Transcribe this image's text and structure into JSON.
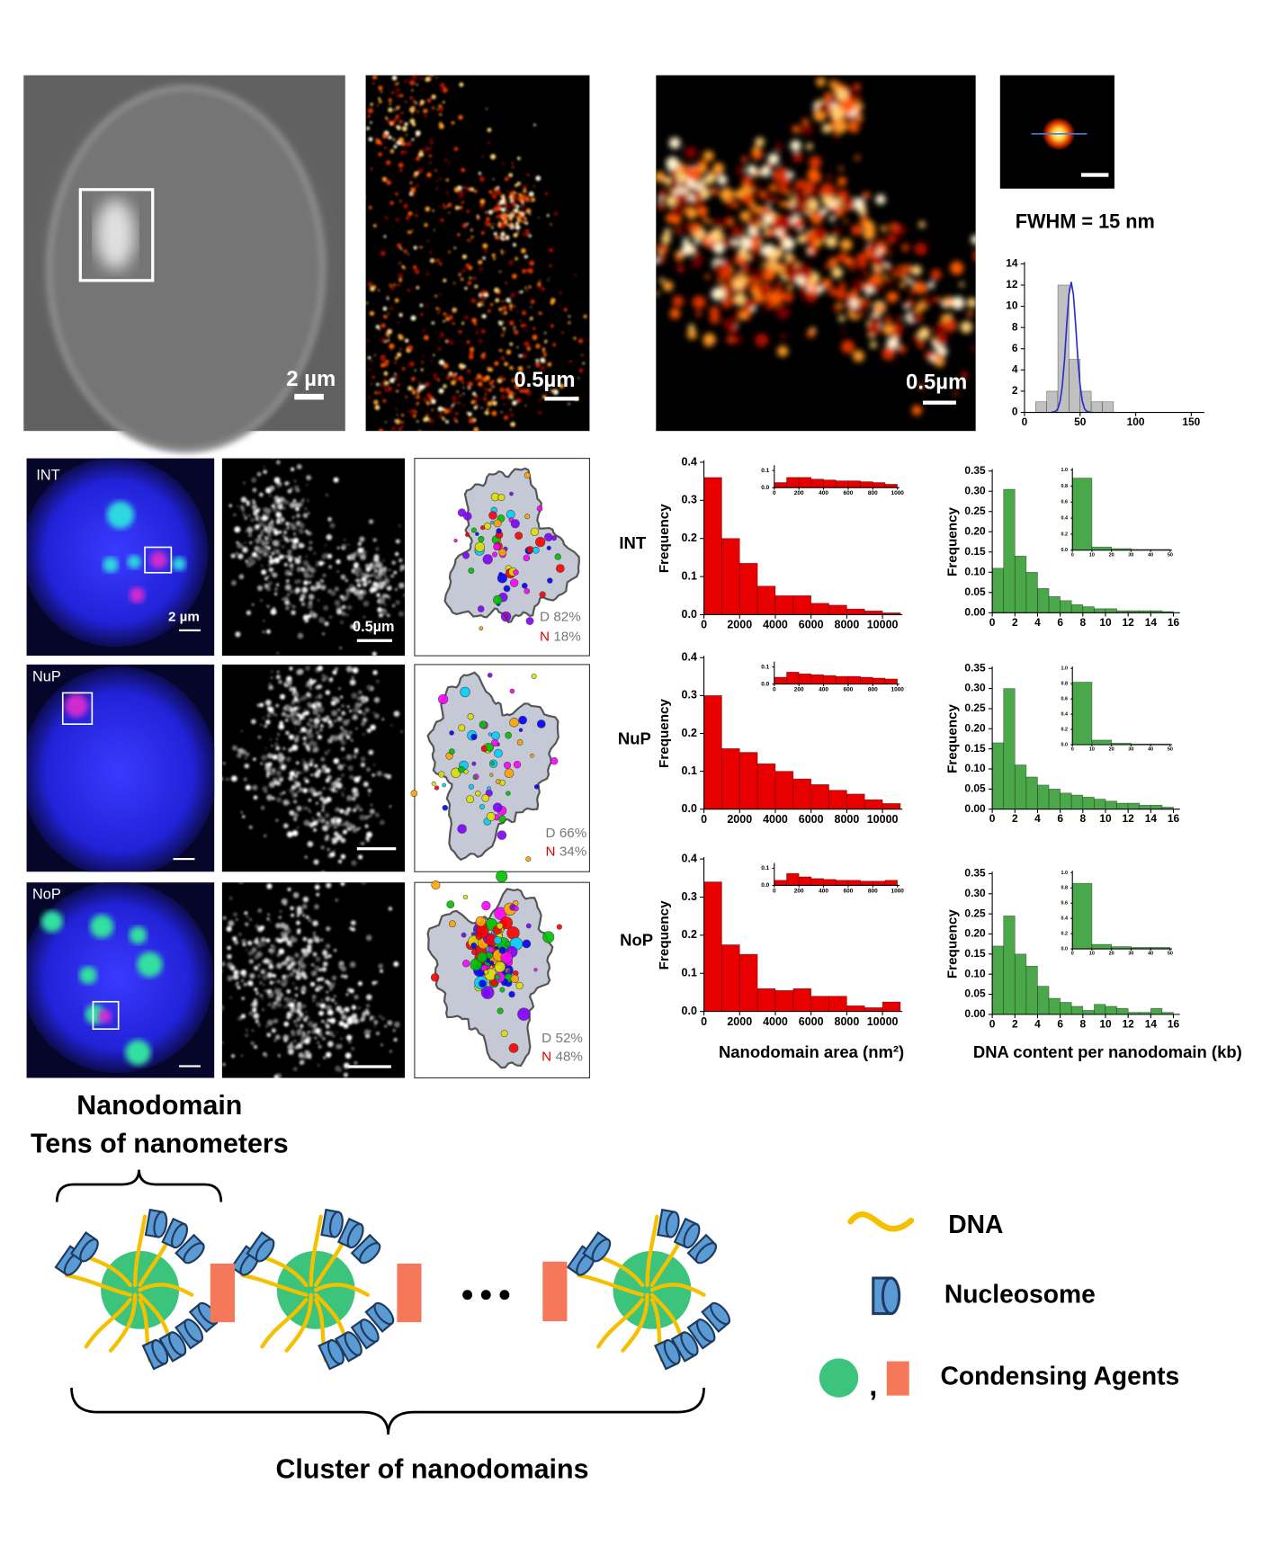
{
  "images": {
    "cell_scale": "2 µm",
    "sr_scale": "0.5µm",
    "zoom_scale": "0.5µm",
    "fwhm": "FWHM = 15 nm"
  },
  "rows": [
    {
      "label": "INT",
      "scale_nucleus": "2 µm",
      "scale_sr": "0.5µm",
      "d_label": "D",
      "d_value": "82%",
      "n_label": "N",
      "n_value": "18%"
    },
    {
      "label": "NuP",
      "d_label": "D",
      "d_value": "66%",
      "n_label": "N",
      "n_value": "34%"
    },
    {
      "label": "NoP",
      "d_label": "D",
      "d_value": "52%",
      "n_label": "N",
      "n_value": "48%"
    }
  ],
  "axis_labels": {
    "area": "Nanodomain area (nm²)",
    "dna": "DNA content per nanodomain (kb)"
  },
  "chart_data": [
    {
      "type": "histogram",
      "bins": [
        10,
        20,
        30,
        40,
        50,
        60,
        70,
        80
      ],
      "values": [
        1,
        2,
        12,
        5,
        2,
        1,
        1
      ],
      "color": "#c0c0c0",
      "fit": {
        "x": [
          24,
          28,
          30,
          32,
          34,
          36,
          38,
          40,
          42,
          44,
          46,
          48,
          50,
          52,
          54,
          56,
          60
        ],
        "values": [
          0,
          0.1,
          0.35,
          1.04,
          2.53,
          5.06,
          8.29,
          11.14,
          12.3,
          11.14,
          8.29,
          5.06,
          2.53,
          1.04,
          0.35,
          0.1,
          0
        ],
        "color": "#2a2ad0"
      },
      "xlim": [
        0,
        160
      ],
      "ylim": [
        0,
        14
      ],
      "xticks": [
        0,
        50,
        100,
        150
      ],
      "yticks": [
        0,
        2,
        4,
        6,
        8,
        10,
        12,
        14
      ]
    },
    {
      "type": "histogram",
      "y_label": "Frequency",
      "color": "#e80000",
      "bins": [
        0,
        1000,
        2000,
        3000,
        4000,
        5000,
        6000,
        7000,
        8000,
        9000,
        10000,
        11000
      ],
      "values": [
        0.36,
        0.2,
        0.135,
        0.075,
        0.05,
        0.05,
        0.03,
        0.025,
        0.015,
        0.01,
        0.005
      ],
      "xlim": [
        0,
        11000
      ],
      "ylim": [
        0,
        0.4
      ],
      "xticks": [
        0,
        2000,
        4000,
        6000,
        8000,
        10000
      ],
      "yticks": [
        {
          "value": 0,
          "label": "0.0"
        },
        0.1,
        0.2,
        0.3,
        0.4
      ],
      "inset": {
        "bins": [
          0,
          100,
          200,
          300,
          400,
          500,
          600,
          700,
          800,
          900,
          1000
        ],
        "values": [
          0.03,
          0.06,
          0.06,
          0.05,
          0.045,
          0.04,
          0.04,
          0.035,
          0.03,
          0.02
        ],
        "xlim": [
          0,
          1000
        ],
        "ylim": [
          0,
          0.12
        ],
        "xticks": [
          0,
          200,
          400,
          600,
          800,
          1000
        ],
        "yticks": [
          {
            "value": 0,
            "label": "0.0"
          },
          0.1
        ]
      }
    },
    {
      "type": "histogram",
      "y_label": "Frequency",
      "color": "#4aa84a",
      "bins": [
        0,
        1,
        2,
        3,
        4,
        5,
        6,
        7,
        8,
        9,
        10,
        11,
        12,
        13,
        14,
        15,
        16
      ],
      "values": [
        0.11,
        0.305,
        0.14,
        0.1,
        0.06,
        0.04,
        0.03,
        0.02,
        0.015,
        0.01,
        0.01,
        0.005,
        0.005,
        0.005,
        0.005,
        0.003
      ],
      "xlim": [
        0,
        16.4
      ],
      "ylim": [
        0,
        0.35
      ],
      "xticks": [
        0,
        2,
        4,
        6,
        8,
        10,
        12,
        14,
        16
      ],
      "yticks": [
        {
          "value": 0,
          "label": "0.00"
        },
        0.05,
        {
          "value": 0.1,
          "label": "0.10"
        },
        0.15,
        {
          "value": 0.2,
          "label": "0.20"
        },
        0.25,
        {
          "value": 0.3,
          "label": "0.30"
        },
        0.35
      ],
      "inset": {
        "bins": [
          0,
          10,
          20,
          30,
          40,
          50
        ],
        "values": [
          0.9,
          0.04,
          0.02,
          0.01,
          0.01
        ],
        "xlim": [
          0,
          50
        ],
        "ylim": [
          0,
          1
        ],
        "xticks": [
          0,
          10,
          20,
          30,
          40,
          50
        ],
        "yticks": [
          {
            "value": 0,
            "label": "0.0"
          },
          0.2,
          0.4,
          0.6,
          0.8,
          {
            "value": 1,
            "label": "1.0"
          }
        ]
      }
    },
    {
      "type": "histogram",
      "y_label": "Frequency",
      "color": "#e80000",
      "bins": [
        0,
        1000,
        2000,
        3000,
        4000,
        5000,
        6000,
        7000,
        8000,
        9000,
        10000,
        11000
      ],
      "values": [
        0.3,
        0.16,
        0.15,
        0.12,
        0.1,
        0.08,
        0.065,
        0.05,
        0.04,
        0.025,
        0.015
      ],
      "xlim": [
        0,
        11000
      ],
      "ylim": [
        0,
        0.4
      ],
      "xticks": [
        0,
        2000,
        4000,
        6000,
        8000,
        10000
      ],
      "yticks": [
        {
          "value": 0,
          "label": "0.0"
        },
        0.1,
        0.2,
        0.3,
        0.4
      ],
      "inset": {
        "bins": [
          0,
          100,
          200,
          300,
          400,
          500,
          600,
          700,
          800,
          900,
          1000
        ],
        "values": [
          0.04,
          0.07,
          0.06,
          0.055,
          0.05,
          0.045,
          0.045,
          0.04,
          0.035,
          0.03
        ],
        "xlim": [
          0,
          1000
        ],
        "ylim": [
          0,
          0.12
        ],
        "xticks": [
          0,
          200,
          400,
          600,
          800,
          1000
        ],
        "yticks": [
          {
            "value": 0,
            "label": "0.0"
          },
          0.1
        ]
      }
    },
    {
      "type": "histogram",
      "y_label": "Frequency",
      "color": "#4aa84a",
      "bins": [
        0,
        1,
        2,
        3,
        4,
        5,
        6,
        7,
        8,
        9,
        10,
        11,
        12,
        13,
        14,
        15,
        16
      ],
      "values": [
        0.165,
        0.3,
        0.11,
        0.08,
        0.06,
        0.05,
        0.04,
        0.035,
        0.03,
        0.025,
        0.02,
        0.015,
        0.015,
        0.01,
        0.01,
        0.005
      ],
      "xlim": [
        0,
        16.4
      ],
      "ylim": [
        0,
        0.35
      ],
      "xticks": [
        0,
        2,
        4,
        6,
        8,
        10,
        12,
        14,
        16
      ],
      "yticks": [
        {
          "value": 0,
          "label": "0.00"
        },
        0.05,
        {
          "value": 0.1,
          "label": "0.10"
        },
        0.15,
        {
          "value": 0.2,
          "label": "0.20"
        },
        0.25,
        {
          "value": 0.3,
          "label": "0.30"
        },
        0.35
      ],
      "inset": {
        "bins": [
          0,
          10,
          20,
          30,
          40,
          50
        ],
        "values": [
          0.82,
          0.06,
          0.02,
          0.01,
          0.01
        ],
        "xlim": [
          0,
          50
        ],
        "ylim": [
          0,
          1
        ],
        "xticks": [
          0,
          10,
          20,
          30,
          40,
          50
        ],
        "yticks": [
          {
            "value": 0,
            "label": "0.0"
          },
          0.2,
          0.4,
          0.6,
          0.8,
          {
            "value": 1,
            "label": "1.0"
          }
        ]
      }
    },
    {
      "type": "histogram",
      "y_label": "Frequency",
      "color": "#e80000",
      "bins": [
        0,
        1000,
        2000,
        3000,
        4000,
        5000,
        6000,
        7000,
        8000,
        9000,
        10000,
        11000
      ],
      "values": [
        0.34,
        0.175,
        0.15,
        0.06,
        0.055,
        0.06,
        0.04,
        0.04,
        0.015,
        0.01,
        0.025
      ],
      "xlim": [
        0,
        11000
      ],
      "ylim": [
        0,
        0.4
      ],
      "xticks": [
        0,
        2000,
        4000,
        6000,
        8000,
        10000
      ],
      "yticks": [
        {
          "value": 0,
          "label": "0.0"
        },
        0.1,
        0.2,
        0.3,
        0.4
      ],
      "inset": {
        "bins": [
          0,
          100,
          200,
          300,
          400,
          500,
          600,
          700,
          800,
          900,
          1000
        ],
        "values": [
          0.03,
          0.07,
          0.05,
          0.04,
          0.035,
          0.03,
          0.03,
          0.025,
          0.025,
          0.03
        ],
        "xlim": [
          0,
          1000
        ],
        "ylim": [
          0,
          0.12
        ],
        "xticks": [
          0,
          200,
          400,
          600,
          800,
          1000
        ],
        "yticks": [
          {
            "value": 0,
            "label": "0.0"
          },
          0.1
        ]
      }
    },
    {
      "type": "histogram",
      "y_label": "Frequency",
      "color": "#4aa84a",
      "bins": [
        0,
        1,
        2,
        3,
        4,
        5,
        6,
        7,
        8,
        9,
        10,
        11,
        12,
        13,
        14,
        15,
        16
      ],
      "values": [
        0.17,
        0.245,
        0.15,
        0.12,
        0.07,
        0.04,
        0.03,
        0.02,
        0.01,
        0.025,
        0.02,
        0.015,
        0.005,
        0.005,
        0.015,
        0.005
      ],
      "xlim": [
        0,
        16.4
      ],
      "ylim": [
        0,
        0.35
      ],
      "xticks": [
        0,
        2,
        4,
        6,
        8,
        10,
        12,
        14,
        16
      ],
      "yticks": [
        {
          "value": 0,
          "label": "0.00"
        },
        0.05,
        {
          "value": 0.1,
          "label": "0.10"
        },
        0.15,
        {
          "value": 0.2,
          "label": "0.20"
        },
        0.25,
        {
          "value": 0.3,
          "label": "0.30"
        },
        0.35
      ],
      "inset": {
        "bins": [
          0,
          10,
          20,
          30,
          40,
          50
        ],
        "values": [
          0.86,
          0.06,
          0.03,
          0.02,
          0.02
        ],
        "xlim": [
          0,
          50
        ],
        "ylim": [
          0,
          1
        ],
        "xticks": [
          0,
          10,
          20,
          30,
          40,
          50
        ],
        "yticks": [
          {
            "value": 0,
            "label": "0.0"
          },
          0.2,
          0.4,
          0.6,
          0.8,
          {
            "value": 1,
            "label": "1.0"
          }
        ]
      }
    }
  ],
  "diagram": {
    "nanodomain": "Nanodomain",
    "scale": "Tens of nanometers",
    "cluster": "Cluster of nanodomains",
    "legend": {
      "dna": "DNA",
      "nucleosome": "Nucleosome",
      "separator": ",",
      "agents": "Condensing Agents"
    }
  }
}
